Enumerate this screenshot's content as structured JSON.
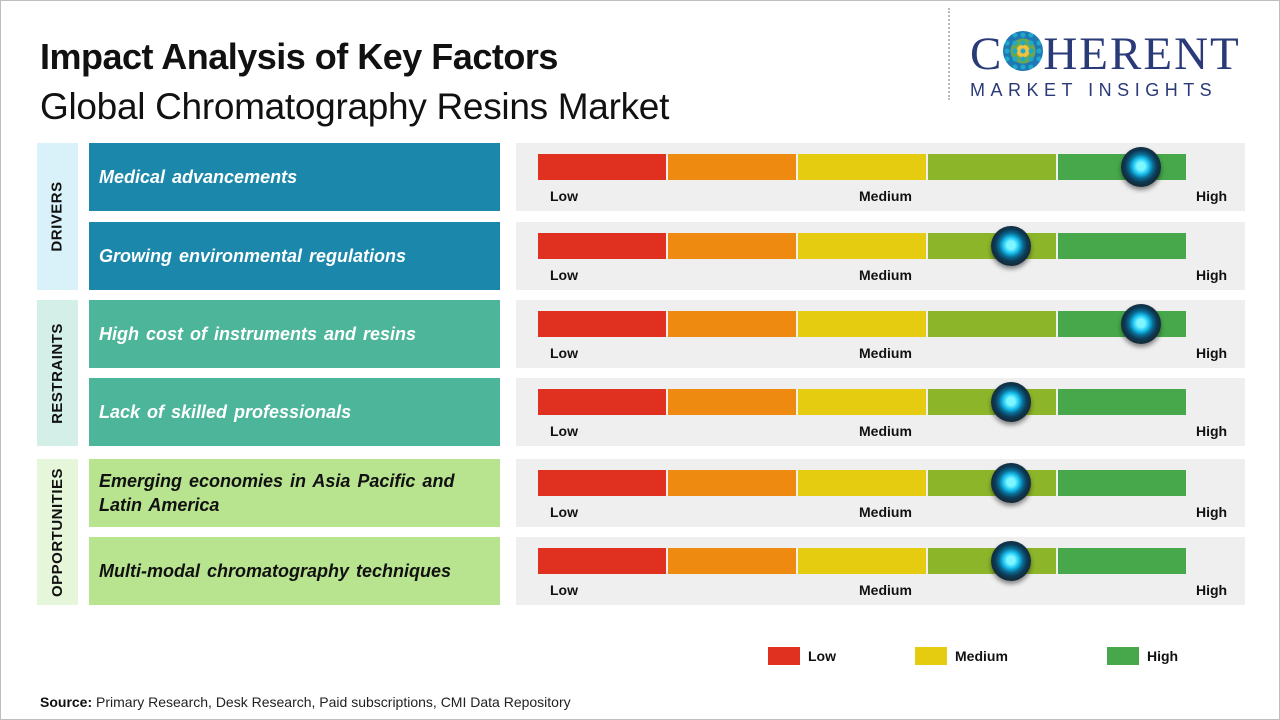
{
  "header": {
    "title": "Impact Analysis of Key Factors",
    "subtitle": "Global Chromatography Resins Market"
  },
  "logo": {
    "main_before": "C",
    "main_after": "HERENT",
    "sub": "MARKET INSIGHTS"
  },
  "groups": [
    {
      "label": "DRIVERS",
      "color": "#d9f1f8"
    },
    {
      "label": "RESTRAINTS",
      "color": "#d4efe8"
    },
    {
      "label": "OPPORTUNITIES",
      "color": "#e6f6da"
    }
  ],
  "scale_labels": {
    "low": "Low",
    "medium": "Medium",
    "high": "High"
  },
  "segment_colors": [
    "#e03020",
    "#ef8a10",
    "#e6cc10",
    "#8db52a",
    "#46a84a"
  ],
  "chart_data": {
    "type": "gauge",
    "scale": [
      "Low",
      "Medium",
      "High"
    ],
    "range": [
      0,
      5
    ],
    "factors": [
      {
        "group": "DRIVERS",
        "label": "Medical advancements",
        "value": 4.65,
        "level": "High"
      },
      {
        "group": "DRIVERS",
        "label": "Growing environmental regulations",
        "value": 3.65,
        "level": "Medium-High"
      },
      {
        "group": "RESTRAINTS",
        "label": "High cost of instruments and resins",
        "value": 4.65,
        "level": "High"
      },
      {
        "group": "RESTRAINTS",
        "label": "Lack of skilled professionals",
        "value": 3.65,
        "level": "Medium-High"
      },
      {
        "group": "OPPORTUNITIES",
        "label": "Emerging economies in Asia Pacific and Latin America",
        "value": 3.65,
        "level": "Medium-High"
      },
      {
        "group": "OPPORTUNITIES",
        "label": "Multi-modal chromatography techniques",
        "value": 3.65,
        "level": "Medium-High"
      }
    ],
    "legend": [
      {
        "label": "Low",
        "color": "#e03020"
      },
      {
        "label": "Medium",
        "color": "#e6cc10"
      },
      {
        "label": "High",
        "color": "#46a84a"
      }
    ]
  },
  "factor_colors": [
    "#1a87ab",
    "#1a87ab",
    "#4db59a",
    "#4db59a",
    "#b9e48f",
    "#b9e48f"
  ],
  "factor_text_colors": [
    "#ffffff",
    "#ffffff",
    "#ffffff",
    "#ffffff",
    "#111111",
    "#111111"
  ],
  "source": {
    "label": "Source:",
    "text": " Primary Research, Desk Research, Paid subscriptions, CMI Data Repository"
  }
}
